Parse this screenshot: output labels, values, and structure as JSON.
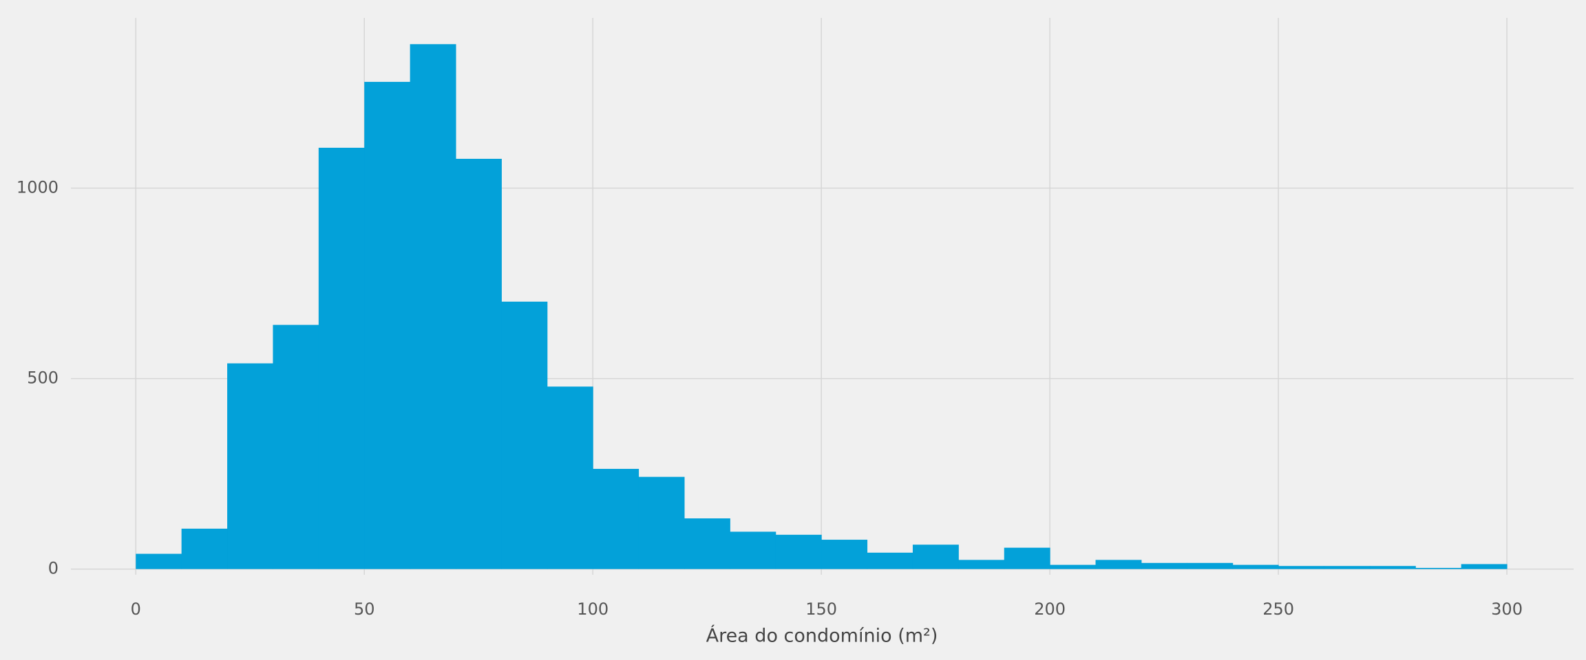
{
  "chart_data": {
    "type": "histogram",
    "xlabel": "Área do condomínio (m²)",
    "bins": [
      0,
      10,
      20,
      30,
      40,
      50,
      60,
      70,
      80,
      90,
      100,
      110,
      120,
      130,
      140,
      150,
      160,
      170,
      180,
      190,
      200,
      210,
      220,
      230,
      240,
      250,
      260,
      270,
      280,
      290,
      300
    ],
    "counts": [
      40,
      106,
      540,
      641,
      1106,
      1279,
      1378,
      1077,
      702,
      479,
      263,
      242,
      133,
      98,
      90,
      77,
      43,
      64,
      24,
      56,
      11,
      24,
      16,
      16,
      11,
      8,
      8,
      8,
      3,
      13
    ],
    "color": "#03a1d9",
    "xlim": [
      -14.2,
      314.6
    ],
    "xticks": [
      0,
      50,
      100,
      150,
      200,
      250,
      300
    ],
    "ylim": [
      -15,
      1447
    ],
    "yticks": [
      0,
      500,
      1000
    ],
    "grid": true
  }
}
